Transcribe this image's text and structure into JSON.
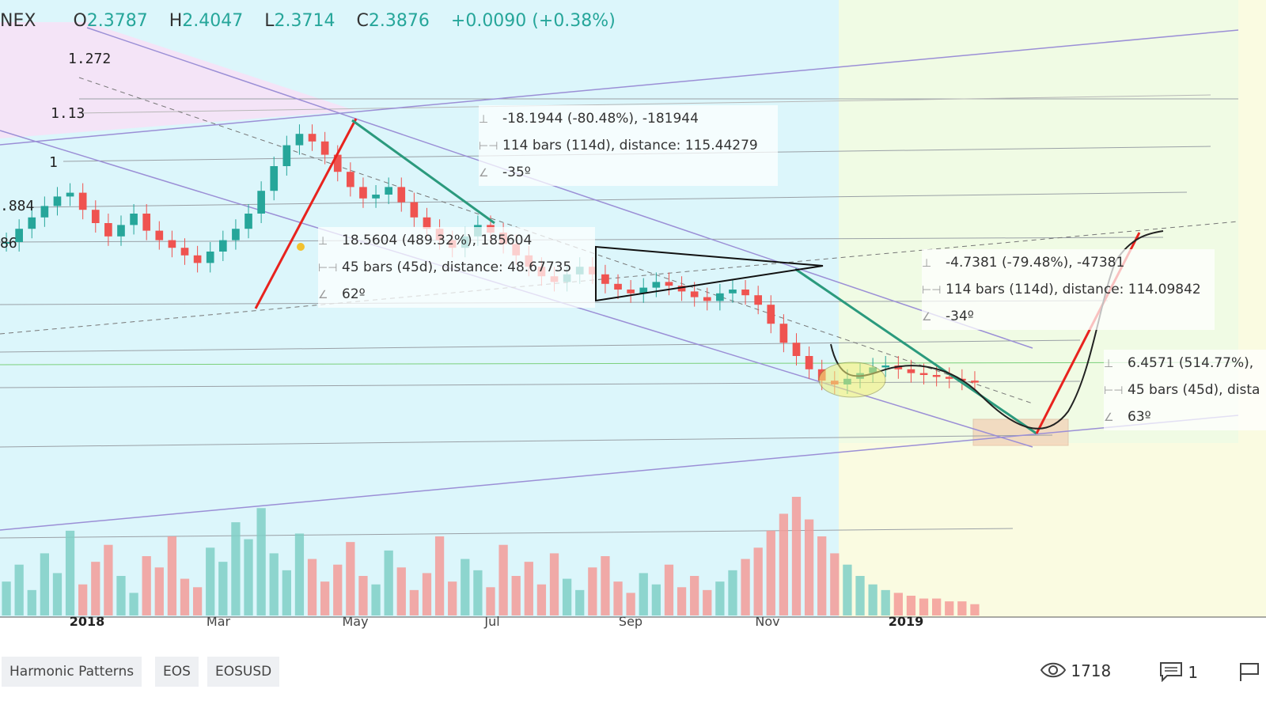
{
  "header": {
    "exchange": "NEX",
    "open_label": "O",
    "open": "2.3787",
    "high_label": "H",
    "high": "2.4047",
    "low_label": "L",
    "low": "2.3714",
    "close_label": "C",
    "close": "2.3876",
    "change": "+0.0090 (+0.38%)"
  },
  "fib_levels": [
    "1.272",
    "1.13",
    "1",
    ".884",
    "86"
  ],
  "annotations": {
    "box1": {
      "price": "-18.1944 (-80.48%), -181944",
      "bars": "114 bars (114d), distance: 115.44279",
      "angle": "-35º"
    },
    "box2": {
      "price": "18.5604 (489.32%), 185604",
      "bars": "45 bars (45d), distance: 48.67735",
      "angle": "62º"
    },
    "box3": {
      "price": "-4.7381 (-79.48%), -47381",
      "bars": "114 bars (114d), distance: 114.09842",
      "angle": "-34º"
    },
    "box4": {
      "price": "6.4571 (514.77%),",
      "bars": "45 bars (45d), dista",
      "angle": "63º"
    }
  },
  "chart_data": {
    "type": "candlestick",
    "title": "",
    "x_ticks": [
      "2018",
      "Mar",
      "May",
      "Jul",
      "Sep",
      "Nov",
      "2019"
    ],
    "y_ticks_fib": [
      "1.272",
      "1.13",
      "1",
      ".884",
      "86"
    ],
    "series": [
      {
        "name": "",
        "values": [
          10.5,
          11.2,
          11.8,
          12.4,
          12.9,
          13.1,
          12.2,
          11.5,
          10.8,
          11.4,
          12.0,
          11.1,
          10.6,
          10.2,
          9.8,
          9.4,
          10.0,
          10.6,
          11.2,
          12.0,
          13.2,
          14.5,
          15.6,
          16.2,
          15.8,
          15.1,
          14.2,
          13.4,
          12.8,
          13.0,
          13.4,
          12.6,
          11.8,
          11.2,
          10.6,
          10.2,
          10.8,
          11.4,
          11.0,
          10.4,
          9.8,
          9.2,
          8.7,
          8.4,
          8.8,
          9.2,
          8.8,
          8.3,
          8.0,
          7.8,
          8.1,
          8.4,
          8.2,
          7.9,
          7.6,
          7.4,
          7.8,
          8.0,
          7.7,
          7.2,
          6.2,
          5.2,
          4.5,
          3.8,
          3.2,
          3.0,
          3.3,
          3.6,
          3.9,
          4.0,
          3.8,
          3.6,
          3.5,
          3.4,
          3.3,
          3.2,
          3.1
        ]
      }
    ],
    "volume": [
      12,
      18,
      9,
      22,
      15,
      30,
      11,
      19,
      25,
      14,
      8,
      21,
      17,
      28,
      13,
      10,
      24,
      19,
      33,
      27,
      38,
      22,
      16,
      29,
      20,
      12,
      18,
      26,
      14,
      11,
      23,
      17,
      9,
      15,
      28,
      12,
      20,
      16,
      10,
      25,
      14,
      19,
      11,
      22,
      13,
      9,
      17,
      21,
      12,
      8,
      15,
      11,
      18,
      10,
      14,
      9,
      12,
      16,
      20,
      24,
      30,
      36,
      42,
      34,
      28,
      22,
      18,
      14,
      11,
      9,
      8,
      7,
      6,
      6,
      5,
      5,
      4
    ],
    "projection": "falling then V-shaped recovery",
    "drawings": [
      "descending channel",
      "fib retracement levels",
      "symmetrical triangle",
      "trend lines",
      "price ranges"
    ]
  },
  "tags": [
    "Harmonic Patterns",
    "EOS",
    "EOSUSD"
  ],
  "stats": {
    "views": "1718",
    "comments": "1"
  },
  "colors": {
    "up": "#26a69a",
    "down": "#ef5350",
    "trend_red": "#e8231e",
    "trend_green": "#2b9a7d",
    "channel": "#9b8fd6"
  }
}
